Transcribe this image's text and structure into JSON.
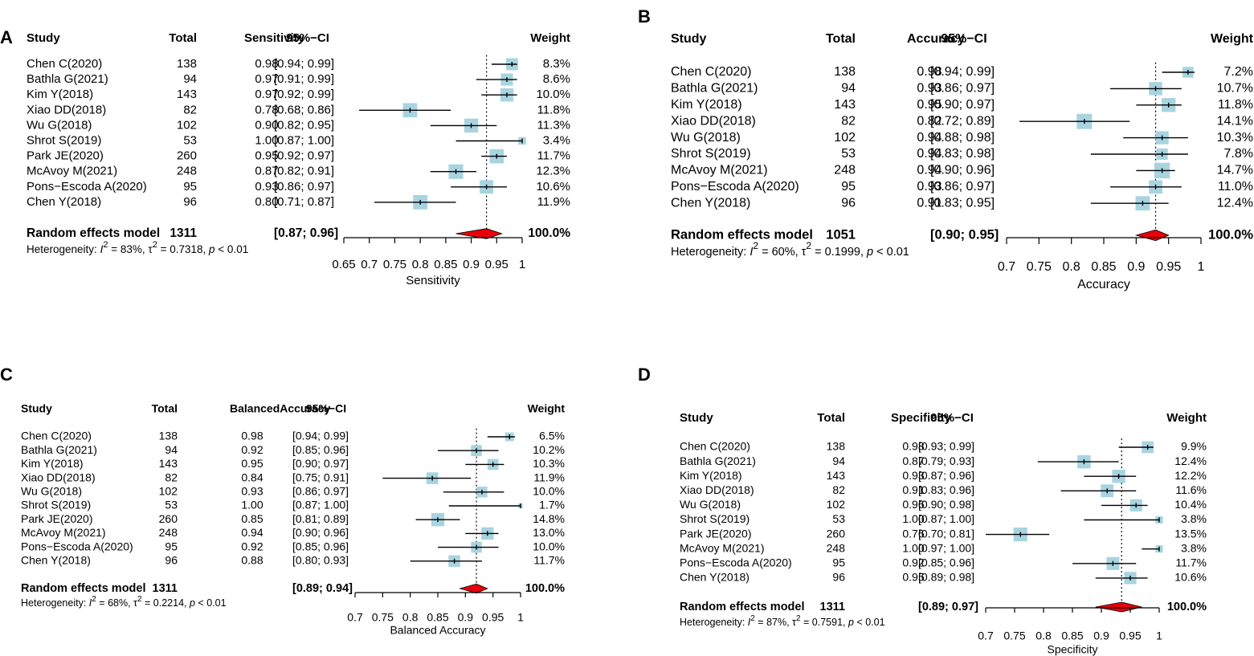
{
  "chart_data": [
    {
      "type": "forest",
      "panel": "A",
      "headers": {
        "study": "Study",
        "total": "Total",
        "metric": "Sensitivity",
        "ci": "95%−CI",
        "weight": "Weight"
      },
      "studies": [
        {
          "name": "Chen C(2020)",
          "total": "138",
          "est": 0.98,
          "lo": 0.94,
          "hi": 0.99,
          "est_label": "0.98",
          "ci_label": "[0.94; 0.99]",
          "weight": 8.3,
          "weight_label": "8.3%"
        },
        {
          "name": "Bathla G(2021)",
          "total": "94",
          "est": 0.97,
          "lo": 0.91,
          "hi": 0.99,
          "est_label": "0.97",
          "ci_label": "[0.91; 0.99]",
          "weight": 8.6,
          "weight_label": "8.6%"
        },
        {
          "name": "Kim Y(2018)",
          "total": "143",
          "est": 0.97,
          "lo": 0.92,
          "hi": 0.99,
          "est_label": "0.97",
          "ci_label": "[0.92; 0.99]",
          "weight": 10.0,
          "weight_label": "10.0%"
        },
        {
          "name": "Xiao DD(2018)",
          "total": "82",
          "est": 0.78,
          "lo": 0.68,
          "hi": 0.86,
          "est_label": "0.78",
          "ci_label": "[0.68; 0.86]",
          "weight": 11.8,
          "weight_label": "11.8%"
        },
        {
          "name": "Wu G(2018)",
          "total": "102",
          "est": 0.9,
          "lo": 0.82,
          "hi": 0.95,
          "est_label": "0.90",
          "ci_label": "[0.82; 0.95]",
          "weight": 11.3,
          "weight_label": "11.3%"
        },
        {
          "name": "Shrot S(2019)",
          "total": "53",
          "est": 1.0,
          "lo": 0.87,
          "hi": 1.0,
          "est_label": "1.00",
          "ci_label": "[0.87; 1.00]",
          "weight": 3.4,
          "weight_label": "3.4%"
        },
        {
          "name": "Park JE(2020)",
          "total": "260",
          "est": 0.95,
          "lo": 0.92,
          "hi": 0.97,
          "est_label": "0.95",
          "ci_label": "[0.92; 0.97]",
          "weight": 11.7,
          "weight_label": "11.7%"
        },
        {
          "name": "McAvoy M(2021)",
          "total": "248",
          "est": 0.87,
          "lo": 0.82,
          "hi": 0.91,
          "est_label": "0.87",
          "ci_label": "[0.82; 0.91]",
          "weight": 12.3,
          "weight_label": "12.3%"
        },
        {
          "name": "Pons−Escoda A(2020)",
          "total": "95",
          "est": 0.93,
          "lo": 0.86,
          "hi": 0.97,
          "est_label": "0.93",
          "ci_label": "[0.86; 0.97]",
          "weight": 10.6,
          "weight_label": "10.6%"
        },
        {
          "name": "Chen Y(2018)",
          "total": "96",
          "est": 0.8,
          "lo": 0.71,
          "hi": 0.87,
          "est_label": "0.80",
          "ci_label": "[0.71; 0.87]",
          "weight": 11.9,
          "weight_label": "11.9%"
        }
      ],
      "pooled": {
        "label": "Random effects model",
        "total": "1311",
        "est": 0.93,
        "lo": 0.87,
        "hi": 0.96,
        "ci_label": "[0.87; 0.96]",
        "weight_label": "100.0%"
      },
      "heterogeneity": {
        "prefix": "Heterogeneity: ",
        "i2": "I",
        "i2_sup": "2",
        "i2_val": " = 83%, ",
        "tau": "τ",
        "tau_sup": "2",
        "tau_val": " = 0.7318, ",
        "p": "p",
        "p_val": " < 0.01"
      },
      "xlim": [
        0.65,
        1.0
      ],
      "ticks": [
        0.65,
        0.7,
        0.75,
        0.8,
        0.85,
        0.9,
        0.95,
        1.0
      ],
      "tick_labels": [
        "0.65",
        "0.7",
        "0.75",
        "0.8",
        "0.85",
        "0.9",
        "0.95",
        "1"
      ],
      "xlabel": "Sensitivity",
      "colors": {
        "square": "#a8d4e0",
        "diamond": "#e8000b",
        "line": "#000000"
      }
    },
    {
      "type": "forest",
      "panel": "B",
      "headers": {
        "study": "Study",
        "total": "Total",
        "metric": "Accuracy",
        "ci": "95%−CI",
        "weight": "Weight"
      },
      "studies": [
        {
          "name": "Chen C(2020)",
          "total": "138",
          "est": 0.98,
          "lo": 0.94,
          "hi": 0.99,
          "est_label": "0.98",
          "ci_label": "[0.94; 0.99]",
          "weight": 7.2,
          "weight_label": "7.2%"
        },
        {
          "name": "Bathla G(2021)",
          "total": "94",
          "est": 0.93,
          "lo": 0.86,
          "hi": 0.97,
          "est_label": "0.93",
          "ci_label": "[0.86; 0.97]",
          "weight": 10.7,
          "weight_label": "10.7%"
        },
        {
          "name": "Kim Y(2018)",
          "total": "143",
          "est": 0.95,
          "lo": 0.9,
          "hi": 0.97,
          "est_label": "0.95",
          "ci_label": "[0.90; 0.97]",
          "weight": 11.8,
          "weight_label": "11.8%"
        },
        {
          "name": "Xiao DD(2018)",
          "total": "82",
          "est": 0.82,
          "lo": 0.72,
          "hi": 0.89,
          "est_label": "0.82",
          "ci_label": "[0.72; 0.89]",
          "weight": 14.1,
          "weight_label": "14.1%"
        },
        {
          "name": "Wu G(2018)",
          "total": "102",
          "est": 0.94,
          "lo": 0.88,
          "hi": 0.98,
          "est_label": "0.94",
          "ci_label": "[0.88; 0.98]",
          "weight": 10.3,
          "weight_label": "10.3%"
        },
        {
          "name": "Shrot S(2019)",
          "total": "53",
          "est": 0.94,
          "lo": 0.83,
          "hi": 0.98,
          "est_label": "0.94",
          "ci_label": "[0.83; 0.98]",
          "weight": 7.8,
          "weight_label": "7.8%"
        },
        {
          "name": "McAvoy M(2021)",
          "total": "248",
          "est": 0.94,
          "lo": 0.9,
          "hi": 0.96,
          "est_label": "0.94",
          "ci_label": "[0.90; 0.96]",
          "weight": 14.7,
          "weight_label": "14.7%"
        },
        {
          "name": "Pons−Escoda A(2020)",
          "total": "95",
          "est": 0.93,
          "lo": 0.86,
          "hi": 0.97,
          "est_label": "0.93",
          "ci_label": "[0.86; 0.97]",
          "weight": 11.0,
          "weight_label": "11.0%"
        },
        {
          "name": "Chen Y(2018)",
          "total": "96",
          "est": 0.91,
          "lo": 0.83,
          "hi": 0.95,
          "est_label": "0.91",
          "ci_label": "[0.83; 0.95]",
          "weight": 12.4,
          "weight_label": "12.4%"
        }
      ],
      "pooled": {
        "label": "Random effects model",
        "total": "1051",
        "est": 0.93,
        "lo": 0.9,
        "hi": 0.95,
        "ci_label": "[0.90; 0.95]",
        "weight_label": "100.0%"
      },
      "heterogeneity": {
        "prefix": "Heterogeneity: ",
        "i2": "I",
        "i2_sup": "2",
        "i2_val": " = 60%, ",
        "tau": "τ",
        "tau_sup": "2",
        "tau_val": " = 0.1999, ",
        "p": "p",
        "p_val": " < 0.01"
      },
      "xlim": [
        0.7,
        1.0
      ],
      "ticks": [
        0.7,
        0.75,
        0.8,
        0.85,
        0.9,
        0.95,
        1.0
      ],
      "tick_labels": [
        "0.7",
        "0.75",
        "0.8",
        "0.85",
        "0.9",
        "0.95",
        "1"
      ],
      "xlabel": "Accuracy",
      "colors": {
        "square": "#a8d4e0",
        "diamond": "#e8000b",
        "line": "#000000"
      }
    },
    {
      "type": "forest",
      "panel": "C",
      "headers": {
        "study": "Study",
        "total": "Total",
        "metric": "BalancedAccuracy",
        "ci": "95%−CI",
        "weight": "Weight"
      },
      "studies": [
        {
          "name": "Chen C(2020)",
          "total": "138",
          "est": 0.98,
          "lo": 0.94,
          "hi": 0.99,
          "est_label": "0.98",
          "ci_label": "[0.94; 0.99]",
          "weight": 6.5,
          "weight_label": "6.5%"
        },
        {
          "name": "Bathla G(2021)",
          "total": "94",
          "est": 0.92,
          "lo": 0.85,
          "hi": 0.96,
          "est_label": "0.92",
          "ci_label": "[0.85; 0.96]",
          "weight": 10.2,
          "weight_label": "10.2%"
        },
        {
          "name": "Kim Y(2018)",
          "total": "143",
          "est": 0.95,
          "lo": 0.9,
          "hi": 0.97,
          "est_label": "0.95",
          "ci_label": "[0.90; 0.97]",
          "weight": 10.3,
          "weight_label": "10.3%"
        },
        {
          "name": "Xiao DD(2018)",
          "total": "82",
          "est": 0.84,
          "lo": 0.75,
          "hi": 0.91,
          "est_label": "0.84",
          "ci_label": "[0.75; 0.91]",
          "weight": 11.9,
          "weight_label": "11.9%"
        },
        {
          "name": "Wu G(2018)",
          "total": "102",
          "est": 0.93,
          "lo": 0.86,
          "hi": 0.97,
          "est_label": "0.93",
          "ci_label": "[0.86; 0.97]",
          "weight": 10.0,
          "weight_label": "10.0%"
        },
        {
          "name": "Shrot S(2019)",
          "total": "53",
          "est": 1.0,
          "lo": 0.87,
          "hi": 1.0,
          "est_label": "1.00",
          "ci_label": "[0.87; 1.00]",
          "weight": 1.7,
          "weight_label": "1.7%"
        },
        {
          "name": "Park JE(2020)",
          "total": "260",
          "est": 0.85,
          "lo": 0.81,
          "hi": 0.89,
          "est_label": "0.85",
          "ci_label": "[0.81; 0.89]",
          "weight": 14.8,
          "weight_label": "14.8%"
        },
        {
          "name": "McAvoy M(2021)",
          "total": "248",
          "est": 0.94,
          "lo": 0.9,
          "hi": 0.96,
          "est_label": "0.94",
          "ci_label": "[0.90; 0.96]",
          "weight": 13.0,
          "weight_label": "13.0%"
        },
        {
          "name": "Pons−Escoda A(2020)",
          "total": "95",
          "est": 0.92,
          "lo": 0.85,
          "hi": 0.96,
          "est_label": "0.92",
          "ci_label": "[0.85; 0.96]",
          "weight": 10.0,
          "weight_label": "10.0%"
        },
        {
          "name": "Chen Y(2018)",
          "total": "96",
          "est": 0.88,
          "lo": 0.8,
          "hi": 0.93,
          "est_label": "0.88",
          "ci_label": "[0.80; 0.93]",
          "weight": 11.7,
          "weight_label": "11.7%"
        }
      ],
      "pooled": {
        "label": "Random effects model",
        "total": "1311",
        "est": 0.92,
        "lo": 0.89,
        "hi": 0.94,
        "ci_label": "[0.89; 0.94]",
        "weight_label": "100.0%"
      },
      "heterogeneity": {
        "prefix": "Heterogeneity: ",
        "i2": "I",
        "i2_sup": "2",
        "i2_val": " = 68%, ",
        "tau": "τ",
        "tau_sup": "2",
        "tau_val": " = 0.2214, ",
        "p": "p",
        "p_val": " < 0.01"
      },
      "xlim": [
        0.7,
        1.0
      ],
      "ticks": [
        0.7,
        0.75,
        0.8,
        0.85,
        0.9,
        0.95,
        1.0
      ],
      "tick_labels": [
        "0.7",
        "0.75",
        "0.8",
        "0.85",
        "0.9",
        "0.95",
        "1"
      ],
      "xlabel": "Balanced Accuracy",
      "colors": {
        "square": "#a8d4e0",
        "diamond": "#e8000b",
        "line": "#000000"
      }
    },
    {
      "type": "forest",
      "panel": "D",
      "headers": {
        "study": "Study",
        "total": "Total",
        "metric": "Specificity",
        "ci": "95%−CI",
        "weight": "Weight"
      },
      "studies": [
        {
          "name": "Chen C(2020)",
          "total": "138",
          "est": 0.98,
          "lo": 0.93,
          "hi": 0.99,
          "est_label": "0.98",
          "ci_label": "[0.93; 0.99]",
          "weight": 9.9,
          "weight_label": "9.9%"
        },
        {
          "name": "Bathla G(2021)",
          "total": "94",
          "est": 0.87,
          "lo": 0.79,
          "hi": 0.93,
          "est_label": "0.87",
          "ci_label": "[0.79; 0.93]",
          "weight": 12.4,
          "weight_label": "12.4%"
        },
        {
          "name": "Kim Y(2018)",
          "total": "143",
          "est": 0.93,
          "lo": 0.87,
          "hi": 0.96,
          "est_label": "0.93",
          "ci_label": "[0.87; 0.96]",
          "weight": 12.2,
          "weight_label": "12.2%"
        },
        {
          "name": "Xiao DD(2018)",
          "total": "82",
          "est": 0.91,
          "lo": 0.83,
          "hi": 0.96,
          "est_label": "0.91",
          "ci_label": "[0.83; 0.96]",
          "weight": 11.6,
          "weight_label": "11.6%"
        },
        {
          "name": "Wu G(2018)",
          "total": "102",
          "est": 0.96,
          "lo": 0.9,
          "hi": 0.98,
          "est_label": "0.96",
          "ci_label": "[0.90; 0.98]",
          "weight": 10.4,
          "weight_label": "10.4%"
        },
        {
          "name": "Shrot S(2019)",
          "total": "53",
          "est": 1.0,
          "lo": 0.87,
          "hi": 1.0,
          "est_label": "1.00",
          "ci_label": "[0.87; 1.00]",
          "weight": 3.8,
          "weight_label": "3.8%"
        },
        {
          "name": "Park JE(2020)",
          "total": "260",
          "est": 0.76,
          "lo": 0.7,
          "hi": 0.81,
          "est_label": "0.76",
          "ci_label": "[0.70; 0.81]",
          "weight": 13.5,
          "weight_label": "13.5%"
        },
        {
          "name": "McAvoy M(2021)",
          "total": "248",
          "est": 1.0,
          "lo": 0.97,
          "hi": 1.0,
          "est_label": "1.00",
          "ci_label": "[0.97; 1.00]",
          "weight": 3.8,
          "weight_label": "3.8%"
        },
        {
          "name": "Pons−Escoda A(2020)",
          "total": "95",
          "est": 0.92,
          "lo": 0.85,
          "hi": 0.96,
          "est_label": "0.92",
          "ci_label": "[0.85; 0.96]",
          "weight": 11.7,
          "weight_label": "11.7%"
        },
        {
          "name": "Chen Y(2018)",
          "total": "96",
          "est": 0.95,
          "lo": 0.89,
          "hi": 0.98,
          "est_label": "0.95",
          "ci_label": "[0.89; 0.98]",
          "weight": 10.6,
          "weight_label": "10.6%"
        }
      ],
      "pooled": {
        "label": "Random effects model",
        "total": "1311",
        "est": 0.935,
        "lo": 0.89,
        "hi": 0.97,
        "ci_label": "[0.89; 0.97]",
        "weight_label": "100.0%"
      },
      "heterogeneity": {
        "prefix": "Heterogeneity: ",
        "i2": "I",
        "i2_sup": "2",
        "i2_val": " = 87%, ",
        "tau": "τ",
        "tau_sup": "2",
        "tau_val": " = 0.7591, ",
        "p": "p",
        "p_val": " < 0.01"
      },
      "xlim": [
        0.7,
        1.0
      ],
      "ticks": [
        0.7,
        0.75,
        0.8,
        0.85,
        0.9,
        0.95,
        1.0
      ],
      "tick_labels": [
        "0.7",
        "0.75",
        "0.8",
        "0.85",
        "0.9",
        "0.95",
        "1"
      ],
      "xlabel": "Specificity",
      "colors": {
        "square": "#a8d4e0",
        "diamond": "#e8000b",
        "line": "#000000"
      }
    }
  ]
}
